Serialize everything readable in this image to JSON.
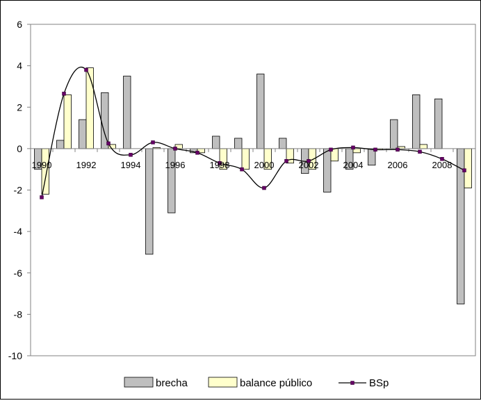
{
  "colors": {
    "brecha_fill": "#BFBFBF",
    "balance_fill": "#FFFFCC",
    "bsp_line": "#000000",
    "bsp_marker": "#660066",
    "axis": "#808080",
    "border": "#000000"
  },
  "chart_data": {
    "type": "bar",
    "title": "",
    "xlabel": "",
    "ylabel": "",
    "ylim": [
      -10,
      6
    ],
    "yticks": [
      6,
      4,
      2,
      0,
      -2,
      -4,
      -6,
      -8,
      -10
    ],
    "ytick_labels": [
      "6",
      "4",
      "2",
      "0",
      "-2",
      "-4",
      "-6",
      "-8",
      "-10"
    ],
    "grid": false,
    "legend_position": "bottom",
    "categories": [
      "1990",
      "1991",
      "1992",
      "1993",
      "1994",
      "1995",
      "1996",
      "1997",
      "1998",
      "1999",
      "2000",
      "2001",
      "2002",
      "2003",
      "2004",
      "2005",
      "2006",
      "2007",
      "2008",
      "2009"
    ],
    "x_tick_labels": [
      "1990",
      "1992",
      "1994",
      "1996",
      "1998",
      "2000",
      "2002",
      "2004",
      "2006",
      "2008"
    ],
    "series": [
      {
        "name": "brecha",
        "type": "bar",
        "values": [
          -1.0,
          0.4,
          1.4,
          2.7,
          3.5,
          -5.1,
          -3.1,
          -0.2,
          0.6,
          0.5,
          3.6,
          0.5,
          -1.2,
          -2.1,
          -1.0,
          -0.8,
          1.4,
          2.6,
          2.4,
          -7.5
        ]
      },
      {
        "name": "balance público",
        "type": "bar",
        "values": [
          -2.2,
          2.6,
          3.9,
          0.2,
          0.0,
          0.05,
          0.2,
          -0.2,
          -1.0,
          -1.0,
          -1.0,
          -0.7,
          -1.0,
          -0.6,
          -0.2,
          -0.05,
          0.1,
          0.2,
          0.0,
          -1.9
        ]
      },
      {
        "name": "BSp",
        "type": "line",
        "values": [
          -2.35,
          2.65,
          3.8,
          0.25,
          -0.3,
          0.3,
          0.0,
          -0.2,
          -0.7,
          -1.0,
          -1.9,
          -0.6,
          -0.6,
          -0.05,
          0.05,
          -0.05,
          -0.05,
          -0.15,
          -0.5,
          -1.05
        ]
      }
    ]
  }
}
